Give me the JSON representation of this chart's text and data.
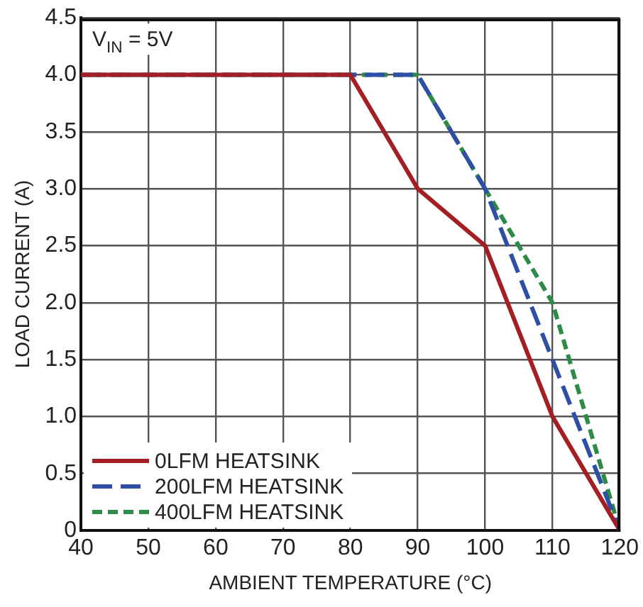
{
  "chart_data": {
    "type": "line",
    "xlabel": "AMBIENT TEMPERATURE (°C)",
    "ylabel": "LOAD CURRENT (A)",
    "annotations": [
      "V$_{IN}$ = 5V"
    ],
    "xlim": [
      40,
      120
    ],
    "xticks": [
      40,
      50,
      60,
      70,
      80,
      90,
      100,
      110,
      120
    ],
    "ylim": [
      0,
      4.5
    ],
    "yticks": [
      0,
      0.5,
      {
        "value": 1,
        "label": "1.0"
      },
      1.5,
      {
        "value": 2,
        "label": "2.0"
      },
      2.5,
      {
        "value": 3,
        "label": "3.0"
      },
      3.5,
      {
        "value": 4,
        "label": "4.0"
      },
      4.5
    ],
    "grid": true,
    "legend": "bottom left",
    "marker": "none",
    "series": [
      {
        "name": "0LFM HEATSINK",
        "color": "#a31f24",
        "line_style": "solid",
        "x": [
          40,
          80,
          90,
          100,
          110,
          120
        ],
        "values": [
          4,
          4,
          3,
          2.5,
          1,
          0
        ]
      },
      {
        "name": "200LFM HEATSINK",
        "color": "#2e4fa3",
        "line_style": "dashed",
        "x": [
          40,
          90,
          100,
          110,
          120
        ],
        "values": [
          4,
          4,
          3,
          1.5,
          0
        ]
      },
      {
        "name": "400LFM HEATSINK",
        "color": "#2e8b47",
        "line_style": "dashed",
        "x": [
          40,
          90,
          100,
          110,
          120
        ],
        "values": [
          4,
          4,
          3,
          2,
          0
        ]
      }
    ]
  }
}
